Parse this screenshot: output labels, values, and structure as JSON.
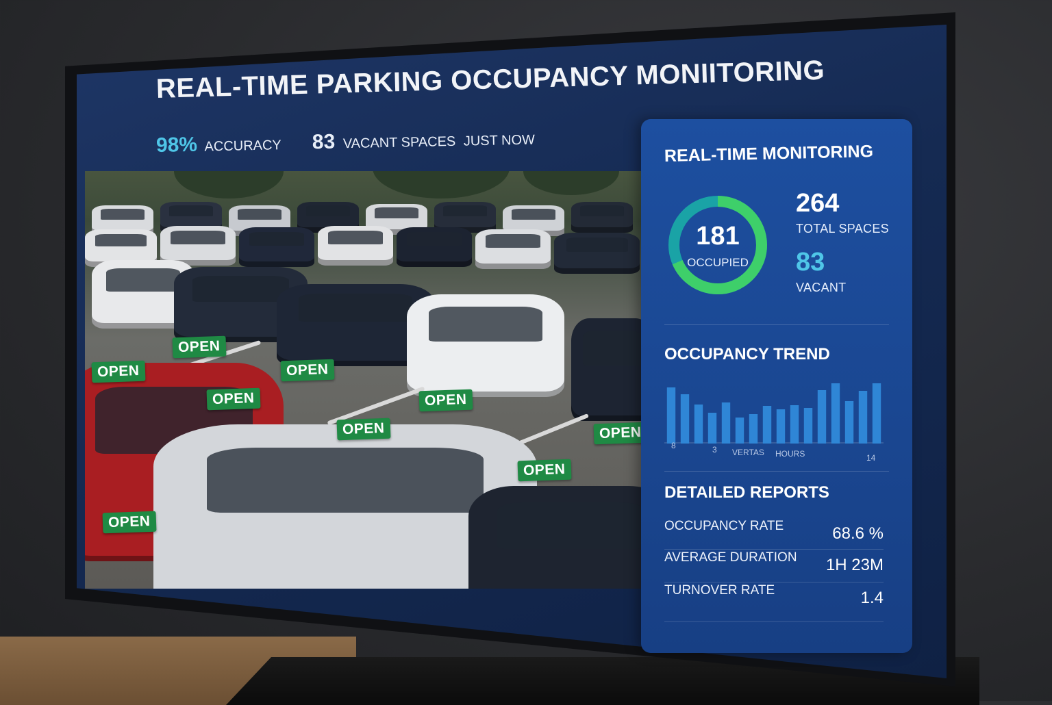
{
  "header": {
    "title": "REAL-TIME PARKING OCCUPANCY MONIITORING",
    "accuracy_value": "98%",
    "accuracy_label": "ACCURACY",
    "vacant_value": "83",
    "vacant_label": "VACANT SPACES",
    "updated": "JUST NOW"
  },
  "camera": {
    "tag_label": "OPEN",
    "open_tag_count": 9
  },
  "panel": {
    "title": "REAL-TIME MONITORING",
    "donut": {
      "value": "181",
      "label": "OCCUPIED",
      "occupied": 181,
      "total": 264
    },
    "total_spaces_value": "264",
    "total_spaces_label": "TOTAL SPACES",
    "vacant_value": "83",
    "vacant_label": "VACANT",
    "trend_title": "OCCUPANCY TREND",
    "trend_axis": {
      "left": "8",
      "left2": "3",
      "mid1": "VERTAS",
      "mid2": "HOURS",
      "right": "14"
    },
    "reports_title": "DETAILED REPORTS",
    "reports": [
      {
        "label": "OCCUPANCY RATE",
        "value": "68.6 %"
      },
      {
        "label": "AVERAGE DURATION",
        "value": "1H 23M"
      },
      {
        "label": "TURNOVER RATE",
        "value": "1.4"
      }
    ]
  },
  "colors": {
    "accent": "#4fc6e8",
    "donut_green": "#3ecf6a",
    "donut_teal": "#1aa3a6",
    "bar_blue": "#2f86d6",
    "open_green": "#1f8a44"
  },
  "chart_data": {
    "type": "bar",
    "title": "OCCUPANCY TREND",
    "values": [
      82,
      72,
      57,
      45,
      60,
      38,
      43,
      55,
      50,
      56,
      52,
      78,
      88,
      62,
      77,
      88
    ],
    "ylim": [
      0,
      100
    ],
    "xlabel": "HOURS",
    "tick_labels": [
      "8",
      "3",
      "VERTAS",
      "HOURS",
      "14"
    ]
  }
}
